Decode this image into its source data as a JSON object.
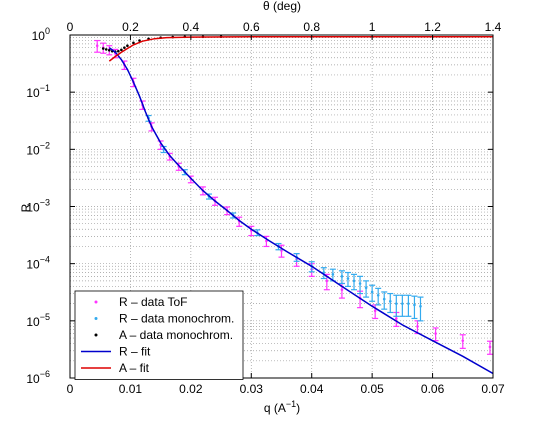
{
  "chart_data": {
    "type": "scatter",
    "xlabel": "q (A⁻¹)",
    "ylabel": "R",
    "top_xlabel": "θ (deg)",
    "xlim": [
      0,
      0.07
    ],
    "ylim": [
      1e-06,
      1
    ],
    "yscale": "log",
    "grid": true,
    "legend_placement": "bottom-left",
    "x_ticks": [
      0,
      0.01,
      0.02,
      0.03,
      0.04,
      0.05,
      0.06,
      0.07
    ],
    "x_tick_labels": [
      "0",
      "0.01",
      "0.02",
      "0.03",
      "0.04",
      "0.05",
      "0.06",
      "0.07"
    ],
    "top_x_ticks": [
      0,
      0.2,
      0.4,
      0.6,
      0.8,
      1,
      1.2,
      1.4
    ],
    "top_x_tick_labels": [
      "0",
      "0.2",
      "0.4",
      "0.6",
      "0.8",
      "1",
      "1.2",
      "1.4"
    ],
    "top_axis_max": 1.4,
    "y_tick_exponents": [
      -6,
      -5,
      -4,
      -3,
      -2,
      -1,
      0
    ],
    "y_tick_base": "10",
    "series": [
      {
        "name": "R – data ToF",
        "kind": "points-errorbars",
        "color": "#ff33ff",
        "points": [
          {
            "x": 0.0045,
            "y": 0.65,
            "yerr": 0.15
          },
          {
            "x": 0.0055,
            "y": 0.6,
            "yerr": 0.12
          },
          {
            "x": 0.0065,
            "y": 0.55,
            "yerr": 0.1
          },
          {
            "x": 0.0075,
            "y": 0.48,
            "yerr": 0.08
          },
          {
            "x": 0.009,
            "y": 0.3,
            "yerr": 0.05
          },
          {
            "x": 0.0105,
            "y": 0.15,
            "yerr": 0.025
          },
          {
            "x": 0.012,
            "y": 0.06,
            "yerr": 0.01
          },
          {
            "x": 0.0135,
            "y": 0.025,
            "yerr": 0.004
          },
          {
            "x": 0.015,
            "y": 0.012,
            "yerr": 0.002
          },
          {
            "x": 0.0165,
            "y": 0.0075,
            "yerr": 0.001
          },
          {
            "x": 0.018,
            "y": 0.005,
            "yerr": 0.0007
          },
          {
            "x": 0.02,
            "y": 0.003,
            "yerr": 0.0004
          },
          {
            "x": 0.022,
            "y": 0.0019,
            "yerr": 0.0003
          },
          {
            "x": 0.024,
            "y": 0.00125,
            "yerr": 0.0002
          },
          {
            "x": 0.026,
            "y": 0.00085,
            "yerr": 0.00013
          },
          {
            "x": 0.028,
            "y": 0.00055,
            "yerr": 0.0001
          },
          {
            "x": 0.03,
            "y": 0.00038,
            "yerr": 7e-05
          },
          {
            "x": 0.0325,
            "y": 0.00025,
            "yerr": 5e-05
          },
          {
            "x": 0.035,
            "y": 0.00017,
            "yerr": 4e-05
          },
          {
            "x": 0.0375,
            "y": 0.00012,
            "yerr": 3e-05
          },
          {
            "x": 0.04,
            "y": 8e-05,
            "yerr": 2e-05
          },
          {
            "x": 0.0425,
            "y": 5e-05,
            "yerr": 1.5e-05
          },
          {
            "x": 0.045,
            "y": 3.5e-05,
            "yerr": 1e-05
          },
          {
            "x": 0.048,
            "y": 2.5e-05,
            "yerr": 8e-06
          },
          {
            "x": 0.0505,
            "y": 1.5e-05,
            "yerr": 4e-06
          },
          {
            "x": 0.054,
            "y": 1.1e-05,
            "yerr": 3e-06
          },
          {
            "x": 0.0575,
            "y": 8e-06,
            "yerr": 2e-06
          },
          {
            "x": 0.0605,
            "y": 6e-06,
            "yerr": 1.5e-06
          },
          {
            "x": 0.065,
            "y": 4.5e-06,
            "yerr": 1.2e-06
          },
          {
            "x": 0.0695,
            "y": 3.5e-06,
            "yerr": 9e-07
          }
        ]
      },
      {
        "name": "R – data monochrom.",
        "kind": "points-errorbars",
        "color": "#33aaee",
        "points": [
          {
            "x": 0.013,
            "y": 0.035,
            "yerr": 0.004
          },
          {
            "x": 0.0155,
            "y": 0.01,
            "yerr": 0.0012
          },
          {
            "x": 0.019,
            "y": 0.004,
            "yerr": 0.0004
          },
          {
            "x": 0.023,
            "y": 0.0015,
            "yerr": 0.00015
          },
          {
            "x": 0.027,
            "y": 0.0007,
            "yerr": 7e-05
          },
          {
            "x": 0.031,
            "y": 0.00035,
            "yerr": 4e-05
          },
          {
            "x": 0.0345,
            "y": 0.0002,
            "yerr": 2.5e-05
          },
          {
            "x": 0.0375,
            "y": 0.00013,
            "yerr": 2e-05
          },
          {
            "x": 0.04,
            "y": 9e-05,
            "yerr": 1.8e-05
          },
          {
            "x": 0.042,
            "y": 7e-05,
            "yerr": 1.5e-05
          },
          {
            "x": 0.0435,
            "y": 6.5e-05,
            "yerr": 1.5e-05
          },
          {
            "x": 0.045,
            "y": 6e-05,
            "yerr": 1.5e-05
          },
          {
            "x": 0.046,
            "y": 5.5e-05,
            "yerr": 1.5e-05
          },
          {
            "x": 0.047,
            "y": 5e-05,
            "yerr": 1.5e-05
          },
          {
            "x": 0.048,
            "y": 4.5e-05,
            "yerr": 1.5e-05
          },
          {
            "x": 0.049,
            "y": 3.8e-05,
            "yerr": 1.2e-05
          },
          {
            "x": 0.05,
            "y": 3.2e-05,
            "yerr": 1e-05
          },
          {
            "x": 0.051,
            "y": 2.8e-05,
            "yerr": 9e-06
          },
          {
            "x": 0.052,
            "y": 2.4e-05,
            "yerr": 8e-06
          },
          {
            "x": 0.053,
            "y": 2.2e-05,
            "yerr": 8e-06
          },
          {
            "x": 0.054,
            "y": 2e-05,
            "yerr": 8e-06
          },
          {
            "x": 0.055,
            "y": 2e-05,
            "yerr": 8e-06
          },
          {
            "x": 0.056,
            "y": 2e-05,
            "yerr": 8e-06
          },
          {
            "x": 0.057,
            "y": 1.9e-05,
            "yerr": 8e-06
          },
          {
            "x": 0.058,
            "y": 1.8e-05,
            "yerr": 8e-06
          }
        ]
      },
      {
        "name": "A – data monochrom.",
        "kind": "points",
        "color": "#000000",
        "points": [
          {
            "x": 0.0055,
            "y": 0.58
          },
          {
            "x": 0.006,
            "y": 0.56
          },
          {
            "x": 0.0065,
            "y": 0.54
          },
          {
            "x": 0.007,
            "y": 0.52
          },
          {
            "x": 0.0075,
            "y": 0.51
          },
          {
            "x": 0.008,
            "y": 0.52
          },
          {
            "x": 0.0085,
            "y": 0.55
          },
          {
            "x": 0.009,
            "y": 0.6
          },
          {
            "x": 0.0095,
            "y": 0.65
          },
          {
            "x": 0.0105,
            "y": 0.73
          },
          {
            "x": 0.0115,
            "y": 0.8
          },
          {
            "x": 0.013,
            "y": 0.86
          },
          {
            "x": 0.015,
            "y": 0.9
          },
          {
            "x": 0.017,
            "y": 0.92
          },
          {
            "x": 0.019,
            "y": 0.93
          },
          {
            "x": 0.022,
            "y": 0.93
          },
          {
            "x": 0.025,
            "y": 0.935
          }
        ]
      },
      {
        "name": "R – fit",
        "kind": "line",
        "color": "#0000cc",
        "points": [
          {
            "x": 0.0065,
            "y": 0.6
          },
          {
            "x": 0.0075,
            "y": 0.5
          },
          {
            "x": 0.0085,
            "y": 0.37
          },
          {
            "x": 0.0095,
            "y": 0.25
          },
          {
            "x": 0.0105,
            "y": 0.15
          },
          {
            "x": 0.0115,
            "y": 0.085
          },
          {
            "x": 0.0125,
            "y": 0.045
          },
          {
            "x": 0.0135,
            "y": 0.025
          },
          {
            "x": 0.015,
            "y": 0.013
          },
          {
            "x": 0.0165,
            "y": 0.0078
          },
          {
            "x": 0.018,
            "y": 0.0052
          },
          {
            "x": 0.02,
            "y": 0.0031
          },
          {
            "x": 0.022,
            "y": 0.0019
          },
          {
            "x": 0.024,
            "y": 0.00125
          },
          {
            "x": 0.026,
            "y": 0.00085
          },
          {
            "x": 0.028,
            "y": 0.00057
          },
          {
            "x": 0.03,
            "y": 0.0004
          },
          {
            "x": 0.033,
            "y": 0.00025
          },
          {
            "x": 0.036,
            "y": 0.00016
          },
          {
            "x": 0.04,
            "y": 9e-05
          },
          {
            "x": 0.045,
            "y": 4e-05
          },
          {
            "x": 0.05,
            "y": 1.8e-05
          },
          {
            "x": 0.055,
            "y": 8.5e-06
          },
          {
            "x": 0.06,
            "y": 4.5e-06
          },
          {
            "x": 0.065,
            "y": 2.4e-06
          },
          {
            "x": 0.07,
            "y": 1.2e-06
          }
        ]
      },
      {
        "name": "A – fit",
        "kind": "line",
        "color": "#dd0000",
        "points": [
          {
            "x": 0.0065,
            "y": 0.35
          },
          {
            "x": 0.0075,
            "y": 0.42
          },
          {
            "x": 0.0085,
            "y": 0.5
          },
          {
            "x": 0.0095,
            "y": 0.58
          },
          {
            "x": 0.0105,
            "y": 0.67
          },
          {
            "x": 0.012,
            "y": 0.78
          },
          {
            "x": 0.014,
            "y": 0.86
          },
          {
            "x": 0.016,
            "y": 0.9
          },
          {
            "x": 0.02,
            "y": 0.92
          },
          {
            "x": 0.03,
            "y": 0.93
          },
          {
            "x": 0.05,
            "y": 0.93
          },
          {
            "x": 0.07,
            "y": 0.93
          }
        ]
      }
    ]
  }
}
